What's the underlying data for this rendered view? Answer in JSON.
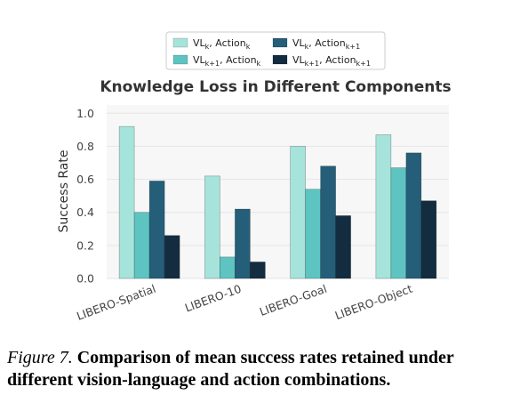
{
  "chart_data": {
    "type": "bar",
    "title": "Knowledge Loss in Different Components",
    "xlabel": "",
    "ylabel": "Success Rate",
    "ylim": [
      0,
      1.05
    ],
    "yticks": [
      "0.0",
      "0.2",
      "0.4",
      "0.6",
      "0.8",
      "1.0"
    ],
    "ytick_values": [
      0,
      0.2,
      0.4,
      0.6,
      0.8,
      1.0
    ],
    "grid": true,
    "legend_position": "top-center",
    "categories": [
      "LIBERO-Spatial",
      "LIBERO-10",
      "LIBERO-Goal",
      "LIBERO-Object"
    ],
    "series": [
      {
        "name_main": "VL",
        "name_sub": "k",
        "name_rest": ", Action",
        "name_sub2": "k",
        "color": "#a6e3db",
        "values": [
          0.92,
          0.62,
          0.8,
          0.87
        ]
      },
      {
        "name_main": "VL",
        "name_sub": "k+1",
        "name_rest": ", Action",
        "name_sub2": "k",
        "color": "#5ec4c1",
        "values": [
          0.4,
          0.13,
          0.54,
          0.67
        ]
      },
      {
        "name_main": "VL",
        "name_sub": "k",
        "name_rest": ", Action",
        "name_sub2": "k+1",
        "color": "#245e78",
        "values": [
          0.59,
          0.42,
          0.68,
          0.76
        ]
      },
      {
        "name_main": "VL",
        "name_sub": "k+1",
        "name_rest": ", Action",
        "name_sub2": "k+1",
        "color": "#142c40",
        "values": [
          0.26,
          0.1,
          0.38,
          0.47
        ]
      }
    ]
  },
  "caption": {
    "figure_label": "Figure 7.",
    "text": "Comparison of mean success rates retained under different vision-language and action combinations."
  }
}
